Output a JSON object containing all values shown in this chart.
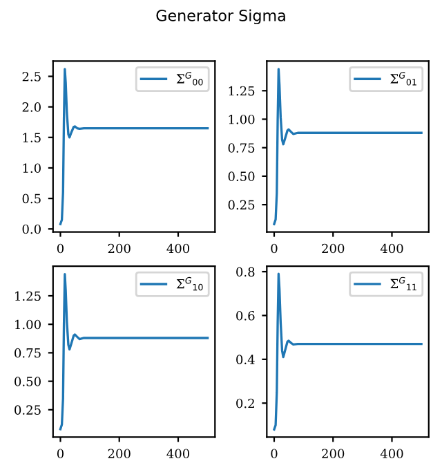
{
  "chart_data": [
    {
      "type": "line",
      "title": "Generator Sigma",
      "x": [
        0,
        5,
        9,
        12,
        15,
        18,
        22,
        27,
        31,
        37,
        45,
        49,
        57,
        65,
        80,
        500
      ],
      "series": [
        {
          "name": "Σ$^{G}$$_{00}$",
          "color": "#1f77b4",
          "values": [
            0.08,
            0.15,
            0.6,
            1.8,
            2.62,
            2.4,
            1.9,
            1.55,
            1.5,
            1.58,
            1.67,
            1.68,
            1.65,
            1.64,
            1.65,
            1.65
          ]
        }
      ],
      "xlim": [
        -25,
        525
      ],
      "xticks": [
        0,
        200,
        400
      ],
      "ylim": [
        -0.05,
        2.75
      ],
      "yticks": [
        {
          "value": 0,
          "label": "0.0"
        },
        0.5,
        {
          "value": 1,
          "label": "1.0"
        },
        1.5,
        {
          "value": 2,
          "label": "2.0"
        },
        2.5
      ],
      "grid": false,
      "legend": "top right"
    },
    {
      "type": "line",
      "x": [
        0,
        5,
        9,
        12,
        15,
        18,
        22,
        27,
        31,
        37,
        45,
        49,
        57,
        65,
        80,
        500
      ],
      "series": [
        {
          "name": "Σ$^{G}$$_{01}$",
          "color": "#1f77b4",
          "values": [
            0.08,
            0.12,
            0.35,
            1.0,
            1.44,
            1.3,
            1.02,
            0.82,
            0.78,
            0.83,
            0.9,
            0.91,
            0.89,
            0.87,
            0.88,
            0.88
          ]
        }
      ],
      "xlim": [
        -25,
        525
      ],
      "xticks": [
        0,
        200,
        400
      ],
      "ylim": [
        0.01,
        1.51
      ],
      "yticks": [
        0.25,
        {
          "value": 0.5,
          "label": "0.50"
        },
        0.75,
        {
          "value": 1,
          "label": "1.00"
        },
        1.25
      ],
      "grid": false,
      "legend": "top right"
    },
    {
      "type": "line",
      "x": [
        0,
        5,
        9,
        12,
        15,
        18,
        22,
        27,
        31,
        37,
        45,
        49,
        57,
        65,
        80,
        500
      ],
      "series": [
        {
          "name": "Σ$^{G}$$_{10}$",
          "color": "#1f77b4",
          "values": [
            0.08,
            0.12,
            0.35,
            1.0,
            1.44,
            1.3,
            1.02,
            0.82,
            0.78,
            0.83,
            0.9,
            0.91,
            0.89,
            0.87,
            0.88,
            0.88
          ]
        }
      ],
      "xlim": [
        -25,
        525
      ],
      "xticks": [
        0,
        200,
        400
      ],
      "ylim": [
        0.01,
        1.51
      ],
      "yticks": [
        0.25,
        {
          "value": 0.5,
          "label": "0.50"
        },
        0.75,
        {
          "value": 1,
          "label": "1.00"
        },
        1.25
      ],
      "grid": false,
      "legend": "top right"
    },
    {
      "type": "line",
      "x": [
        0,
        5,
        9,
        12,
        15,
        18,
        22,
        27,
        31,
        37,
        45,
        49,
        57,
        65,
        80,
        500
      ],
      "series": [
        {
          "name": "Σ$^{G}$$_{11}$",
          "color": "#1f77b4",
          "values": [
            0.08,
            0.1,
            0.25,
            0.57,
            0.79,
            0.72,
            0.57,
            0.44,
            0.41,
            0.44,
            0.48,
            0.485,
            0.475,
            0.468,
            0.47,
            0.47
          ]
        }
      ],
      "xlim": [
        -25,
        525
      ],
      "xticks": [
        0,
        200,
        400
      ],
      "ylim": [
        0.045,
        0.825
      ],
      "yticks": [
        0.2,
        0.4,
        0.6,
        0.8
      ],
      "grid": false,
      "legend": "top right"
    }
  ]
}
